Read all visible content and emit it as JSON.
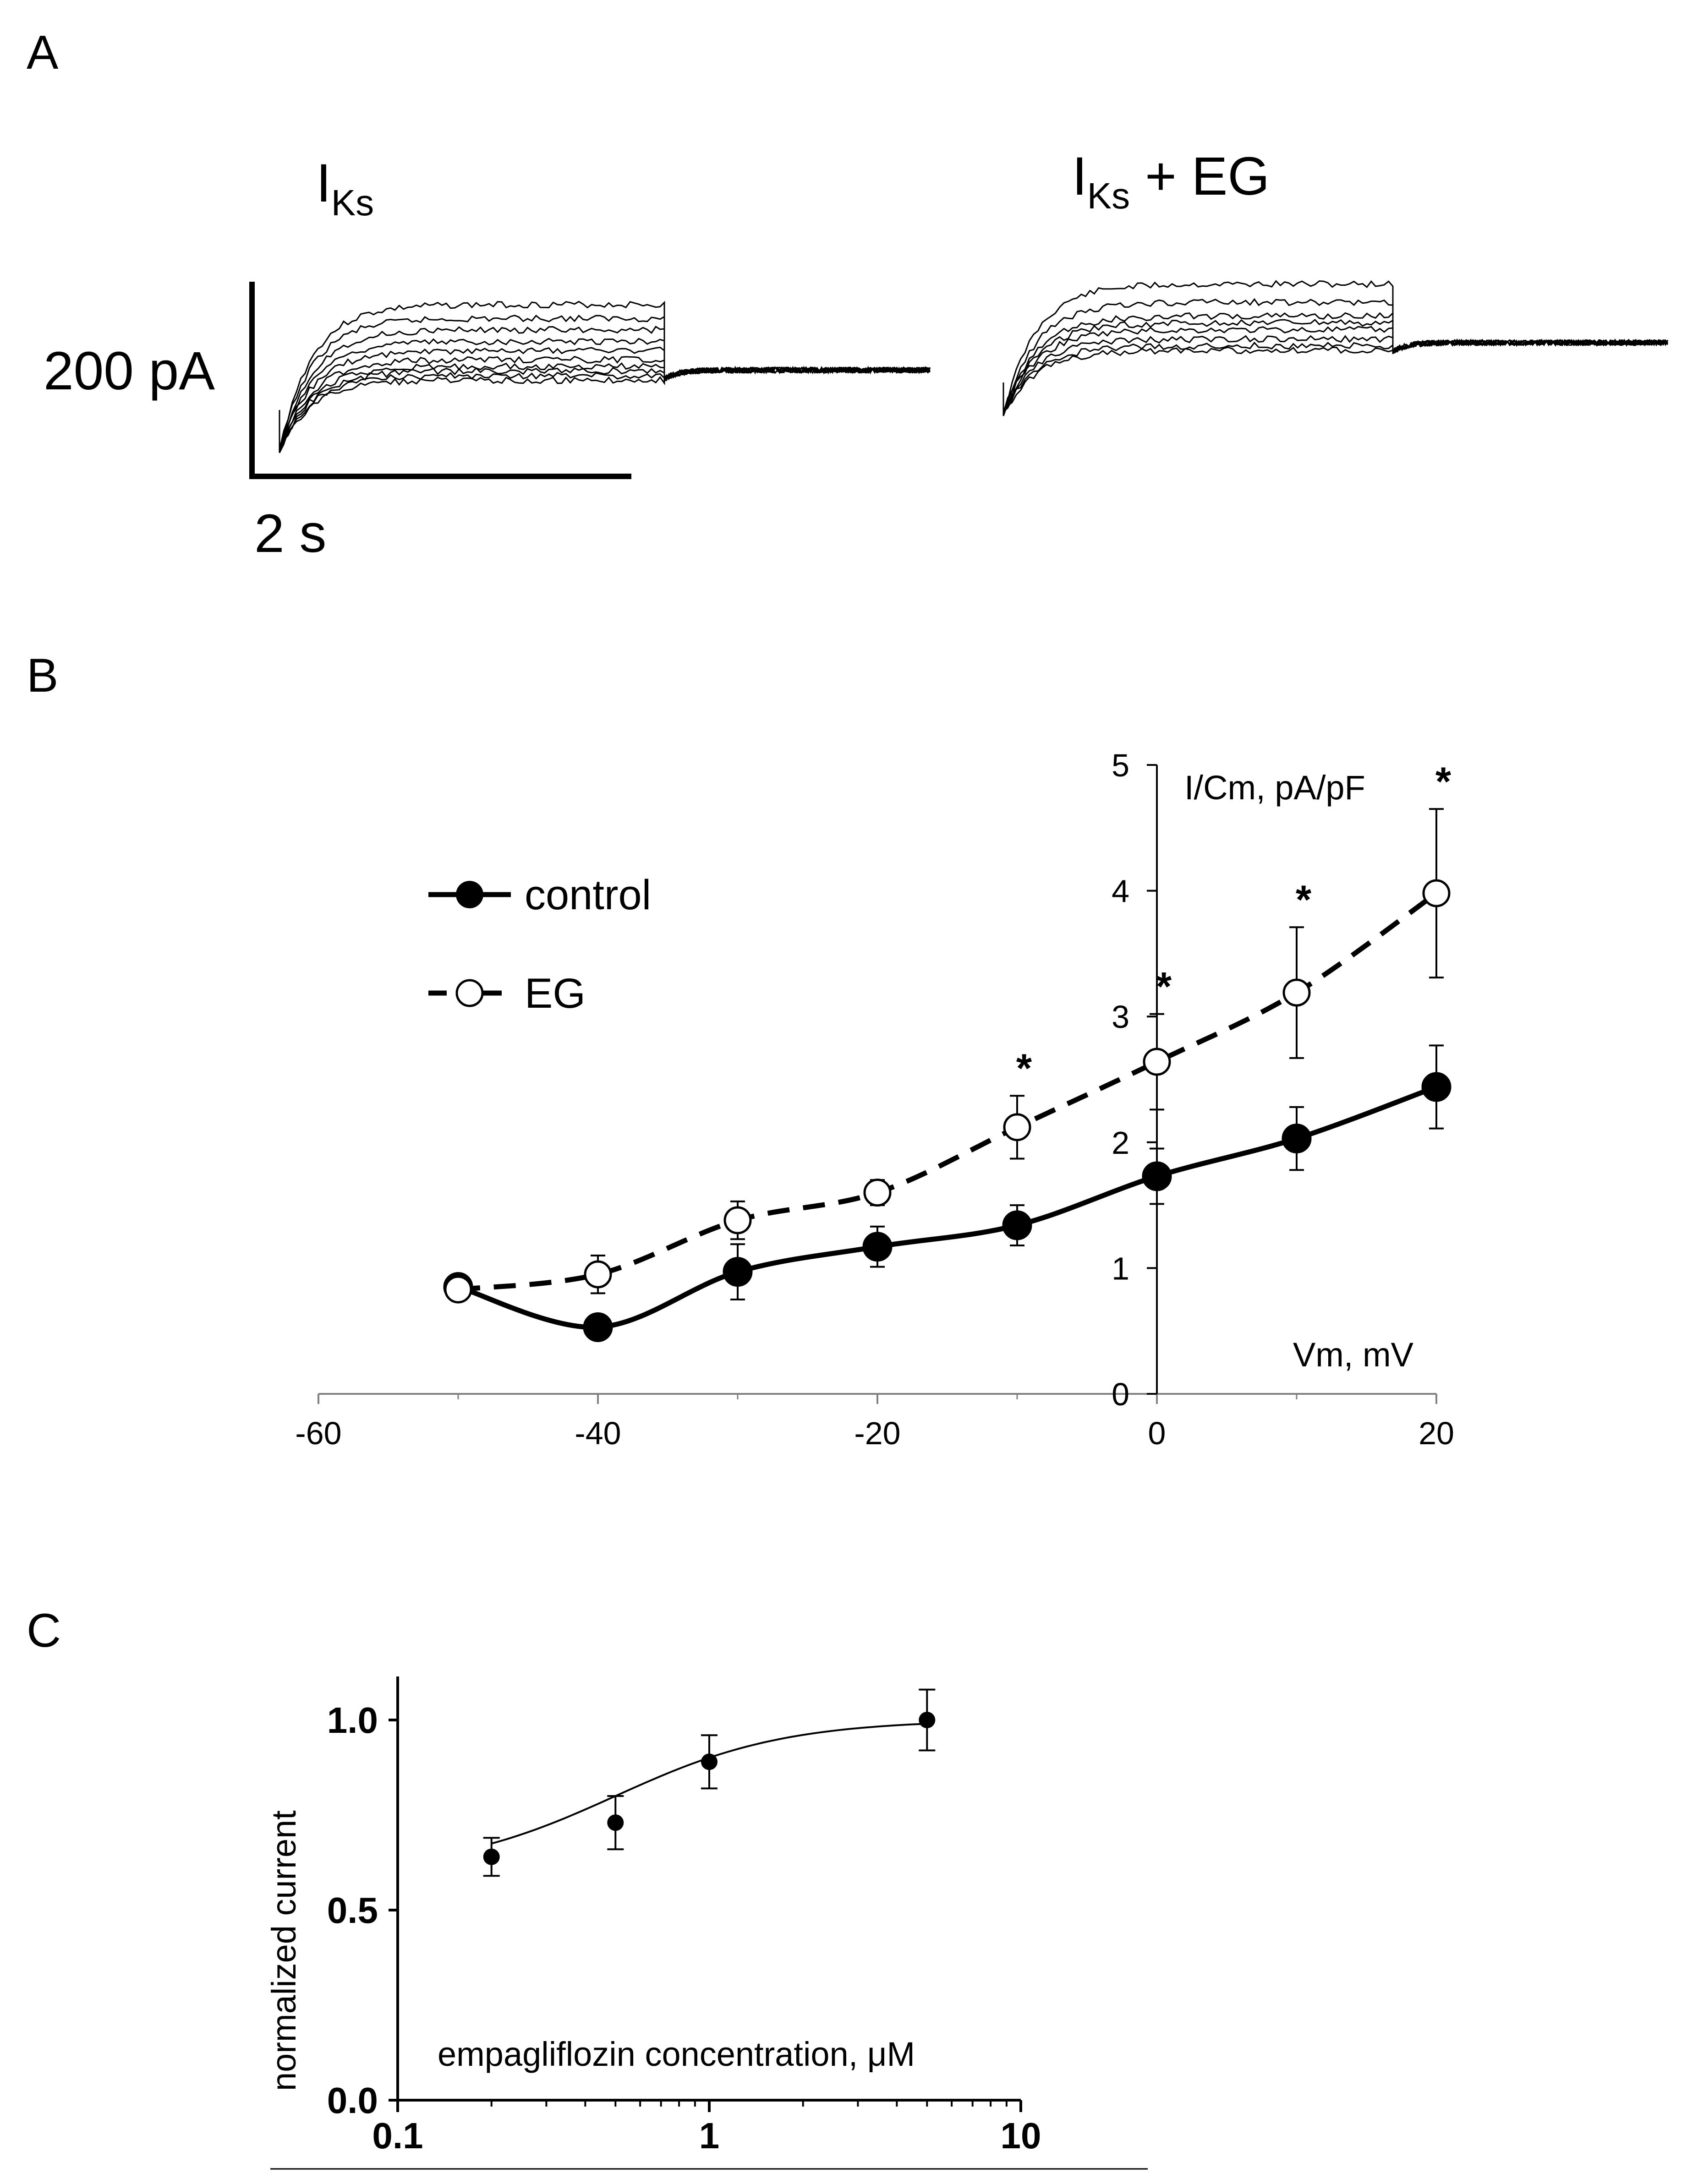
{
  "panels": {
    "a": "A",
    "b": "B",
    "c": "C"
  },
  "panel_a": {
    "trace_left_label_main": "I",
    "trace_left_label_sub": "Ks",
    "trace_right_label_main": "I",
    "trace_right_label_sub": "Ks",
    "trace_right_label_suffix": " + EG",
    "scale_current": "200 pA",
    "scale_time": "2 s"
  },
  "chart_data": [
    {
      "type": "line",
      "panel": "B",
      "xlabel": "Vm, mV",
      "ylabel": "I/Cm, pA/pF",
      "xlim": [
        -60,
        20
      ],
      "ylim": [
        0,
        5
      ],
      "xticks": [
        -60,
        -40,
        -20,
        0,
        20
      ],
      "yticks": [
        0,
        1,
        2,
        3,
        4,
        5
      ],
      "legend_position": "top-left",
      "series": [
        {
          "name": "control",
          "marker": "filled-circle",
          "line": "solid",
          "x": [
            -50,
            -40,
            -30,
            -20,
            -10,
            0,
            10,
            20
          ],
          "y": [
            0.85,
            0.53,
            0.97,
            1.17,
            1.34,
            1.73,
            2.03,
            2.44
          ],
          "err": [
            0.06,
            0.04,
            0.22,
            0.16,
            0.16,
            0.22,
            0.25,
            0.33
          ]
        },
        {
          "name": "EG",
          "marker": "open-circle",
          "line": "dashed",
          "x": [
            -50,
            -40,
            -30,
            -20,
            -10,
            0,
            10,
            20
          ],
          "y": [
            0.83,
            0.95,
            1.38,
            1.6,
            2.12,
            2.64,
            3.19,
            3.98
          ],
          "err": [
            0.06,
            0.15,
            0.15,
            0.1,
            0.25,
            0.38,
            0.52,
            0.67
          ]
        }
      ],
      "significance_marker": "*",
      "significant_x": [
        -10,
        0,
        10,
        20
      ]
    },
    {
      "type": "scatter",
      "panel": "C",
      "xscale": "log",
      "xlabel": "empagliflozin concentration, μM",
      "ylabel": "normalized current",
      "xlim": [
        0.1,
        10
      ],
      "ylim": [
        0.0,
        1.1
      ],
      "xticks": [
        0.1,
        1,
        10
      ],
      "xtick_labels": [
        "0.1",
        "1",
        "10"
      ],
      "yticks": [
        0.0,
        0.5,
        1.0
      ],
      "ytick_labels": [
        "0.0",
        "0.5",
        "1.0"
      ],
      "x": [
        0.2,
        0.5,
        1,
        5
      ],
      "y": [
        0.64,
        0.73,
        0.89,
        1.0
      ],
      "err": [
        0.05,
        0.07,
        0.07,
        0.08
      ],
      "fit": "sigmoidal dose-response curve"
    }
  ]
}
